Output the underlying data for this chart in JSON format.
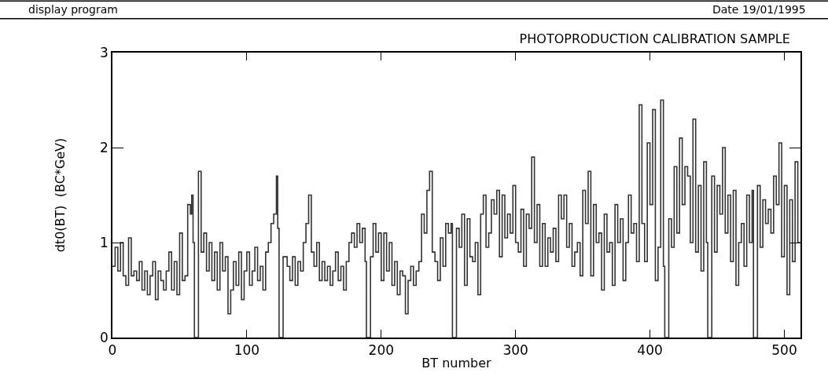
{
  "chart_data": {
    "type": "step",
    "title": "PHOTOPRODUCTION CALIBRATION SAMPLE",
    "xlabel": "BT number",
    "ylabel": "dt0(BT)  (BC*GeV)",
    "annotations": [
      "display program",
      "Date 19/01/1995"
    ],
    "x": [
      0,
      2,
      4,
      6,
      8,
      10,
      12,
      14,
      16,
      18,
      20,
      22,
      24,
      26,
      28,
      30,
      32,
      34,
      36,
      38,
      40,
      42,
      44,
      46,
      48,
      50,
      52,
      54,
      56,
      58,
      59,
      60,
      61,
      64,
      66,
      68,
      70,
      72,
      74,
      76,
      78,
      80,
      82,
      84,
      86,
      88,
      90,
      92,
      94,
      96,
      98,
      100,
      102,
      104,
      106,
      108,
      110,
      112,
      114,
      116,
      118,
      120,
      122,
      123,
      124,
      127,
      130,
      132,
      134,
      136,
      138,
      140,
      142,
      144,
      146,
      148,
      150,
      152,
      154,
      156,
      158,
      160,
      162,
      164,
      166,
      168,
      170,
      172,
      174,
      176,
      178,
      180,
      182,
      184,
      186,
      188,
      189,
      192,
      194,
      196,
      198,
      200,
      202,
      204,
      206,
      208,
      210,
      212,
      214,
      216,
      218,
      220,
      222,
      224,
      226,
      228,
      230,
      232,
      234,
      236,
      238,
      240,
      242,
      244,
      246,
      248,
      250,
      252,
      253,
      256,
      258,
      260,
      262,
      264,
      266,
      268,
      270,
      272,
      274,
      276,
      278,
      280,
      282,
      284,
      286,
      288,
      290,
      292,
      294,
      296,
      298,
      300,
      302,
      304,
      306,
      308,
      310,
      312,
      314,
      316,
      318,
      320,
      322,
      324,
      326,
      328,
      330,
      332,
      334,
      336,
      338,
      340,
      342,
      344,
      346,
      348,
      350,
      352,
      354,
      356,
      358,
      360,
      362,
      364,
      366,
      368,
      370,
      372,
      374,
      376,
      378,
      380,
      382,
      384,
      386,
      388,
      390,
      392,
      394,
      396,
      398,
      400,
      402,
      404,
      406,
      408,
      410,
      411,
      414,
      416,
      418,
      420,
      422,
      424,
      426,
      428,
      430,
      432,
      434,
      436,
      438,
      440,
      442,
      443,
      446,
      448,
      450,
      452,
      454,
      456,
      458,
      460,
      462,
      464,
      466,
      468,
      470,
      472,
      474,
      476,
      477,
      480,
      482,
      484,
      486,
      488,
      490,
      492,
      494,
      496,
      498,
      500,
      502,
      504,
      506,
      508,
      510,
      512
    ],
    "series": [
      {
        "color": "#333333",
        "values": [
          0.75,
          0.95,
          0.7,
          1.0,
          0.65,
          0.55,
          1.05,
          0.65,
          0.7,
          0.6,
          0.8,
          0.5,
          0.7,
          0.45,
          0.65,
          0.8,
          0.4,
          0.7,
          0.6,
          0.5,
          0.7,
          0.9,
          0.5,
          0.8,
          0.45,
          1.1,
          0.6,
          0.65,
          1.4,
          1.3,
          1.5,
          1.0,
          0,
          1.75,
          0.9,
          1.1,
          0.7,
          1.0,
          0.6,
          0.9,
          0.5,
          1.0,
          0.7,
          0.85,
          0.25,
          0.5,
          0.8,
          0.55,
          0.9,
          0.4,
          0.7,
          0.9,
          0.55,
          0.7,
          0.95,
          0.6,
          0.75,
          0.5,
          0.9,
          1.0,
          1.2,
          1.3,
          1.7,
          1.15,
          0,
          0.85,
          0.75,
          0.6,
          0.85,
          0.55,
          0.8,
          0.7,
          1.0,
          1.2,
          1.5,
          0.9,
          0.75,
          1.0,
          0.6,
          0.8,
          0.6,
          0.75,
          0.55,
          0.7,
          0.9,
          0.6,
          0.75,
          0.5,
          0.8,
          1.0,
          1.1,
          0.95,
          1.2,
          1.0,
          1.15,
          0.8,
          0,
          0.85,
          1.2,
          0.9,
          1.1,
          0.6,
          1.1,
          0.7,
          1.0,
          0.55,
          0.8,
          0.45,
          0.7,
          0.65,
          0.25,
          0.6,
          0.75,
          0.55,
          0.7,
          0.8,
          1.3,
          1.1,
          1.55,
          1.75,
          0.9,
          0.8,
          0.6,
          1.05,
          0.75,
          1.2,
          1.1,
          1.2,
          0,
          1.15,
          0.95,
          1.3,
          0.55,
          1.25,
          0.85,
          0.8,
          1.0,
          0.45,
          1.3,
          1.5,
          0.95,
          1.1,
          1.45,
          1.3,
          1.55,
          0.85,
          1.5,
          1.05,
          1.3,
          1.1,
          1.6,
          1.0,
          0.9,
          1.35,
          0.75,
          1.3,
          1.15,
          1.9,
          1.0,
          1.4,
          0.75,
          1.2,
          0.75,
          1.05,
          0.9,
          1.15,
          0.8,
          1.5,
          1.25,
          1.5,
          0.95,
          1.2,
          0.75,
          0.9,
          1.0,
          0.65,
          1.55,
          1.2,
          1.75,
          0.65,
          1.4,
          1.0,
          1.1,
          0.5,
          1.3,
          0.9,
          1.0,
          0.55,
          1.4,
          1.0,
          1.25,
          0.6,
          1.0,
          1.5,
          1.1,
          1.2,
          0.8,
          2.45,
          1.2,
          0.8,
          2.05,
          1.4,
          2.4,
          0.6,
          0.95,
          2.5,
          0.75,
          0,
          1.25,
          0.95,
          1.8,
          1.1,
          2.1,
          1.4,
          1.8,
          1.7,
          1.0,
          2.3,
          0.9,
          1.6,
          0.7,
          1.85,
          1.0,
          0,
          1.7,
          0.9,
          1.6,
          1.3,
          2.0,
          1.1,
          1.5,
          0.8,
          1.55,
          0.55,
          1.0,
          1.2,
          0.75,
          1.5,
          1.0,
          1.55,
          0,
          1.6,
          0.95,
          1.45,
          1.2,
          1.35,
          1.1,
          1.7,
          1.4,
          2.05,
          0.85,
          1.6,
          0.45,
          1.45,
          0.8,
          1.85,
          1.0,
          1.0
        ]
      }
    ],
    "xlim": [
      0,
      512
    ],
    "ylim": [
      0,
      3
    ],
    "xticks": [
      0,
      100,
      200,
      300,
      400,
      500
    ],
    "yticks": [
      0,
      1,
      2,
      3
    ],
    "grid": false,
    "marker": "none",
    "line_style": "solid"
  }
}
